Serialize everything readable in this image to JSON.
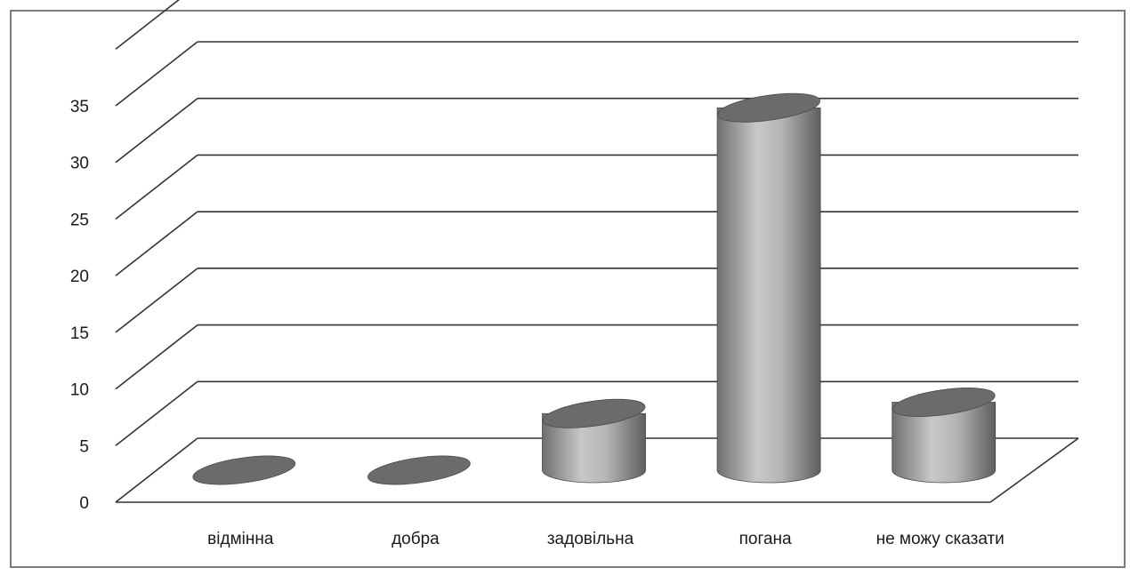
{
  "chart_data": {
    "type": "bar",
    "style": "3d-cylinder",
    "categories": [
      "відмінна",
      "добра",
      "задовільна",
      "погана",
      "не можу сказати"
    ],
    "values": [
      0,
      0,
      5,
      32,
      6
    ],
    "title": "",
    "xlabel": "",
    "ylabel": "",
    "ylim": [
      0,
      35
    ],
    "yticks": [
      0,
      5,
      10,
      15,
      20,
      25,
      30,
      35
    ],
    "ytick_labels": [
      "0",
      "5",
      "10",
      "15",
      "20",
      "25",
      "30",
      "35"
    ],
    "grid": true,
    "legend": "none",
    "colors": {
      "bar_side": "#8c8c8c",
      "bar_top": "#6b6b6b",
      "grid": "#333333",
      "frame": "#7a7a7a"
    }
  }
}
